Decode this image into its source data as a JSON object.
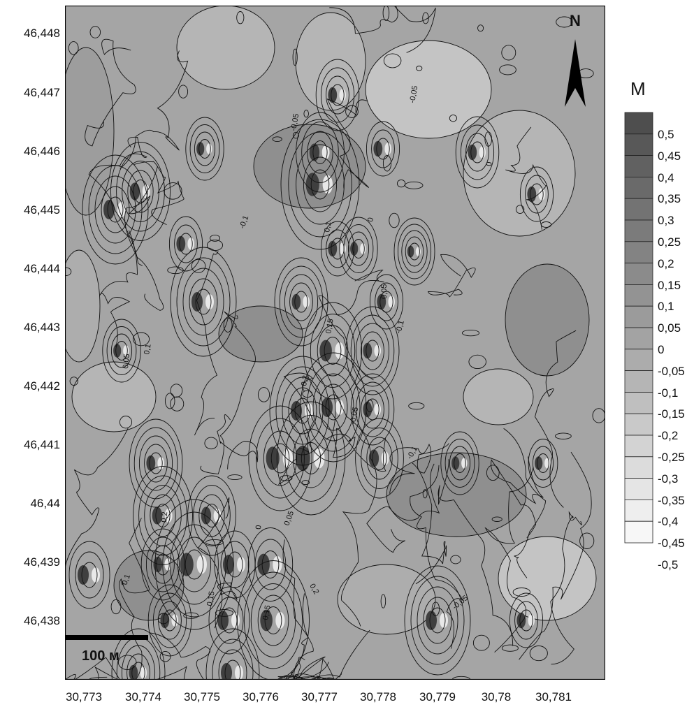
{
  "map": {
    "y_axis_labels": [
      "46,448",
      "46,447",
      "46,446",
      "46,445",
      "46,444",
      "46,443",
      "46,442",
      "46,441",
      "46,44",
      "46,439",
      "46,438"
    ],
    "x_axis_labels": [
      "30,773",
      "30,774",
      "30,775",
      "30,776",
      "30,777",
      "30,778",
      "30,779",
      "30,78",
      "30,781"
    ],
    "contour_labels": [
      "-0.05",
      "-0.1",
      "0",
      "0.05",
      "0.1",
      "0.15",
      "0.2"
    ],
    "scale_bar_label": "100 м",
    "north_label": "N",
    "colors": {
      "background": "#ffffff",
      "contour_line": "#111111",
      "frame": "#000000"
    }
  },
  "legend": {
    "title": "М",
    "levels": [
      "0,5",
      "0,45",
      "0,4",
      "0,35",
      "0,3",
      "0,25",
      "0,2",
      "0,15",
      "0,1",
      "0,05",
      "0",
      "-0,05",
      "-0,1",
      "-0,15",
      "-0,2",
      "-0,25",
      "-0,3",
      "-0,35",
      "-0,4",
      "-0,45",
      "-0,5"
    ],
    "colors": [
      "#4e4e4e",
      "#585858",
      "#616161",
      "#6a6a6a",
      "#737373",
      "#7b7b7b",
      "#838383",
      "#8b8b8b",
      "#939393",
      "#9b9b9b",
      "#a3a3a3",
      "#acacac",
      "#b5b5b5",
      "#bfbfbf",
      "#c9c9c9",
      "#d3d3d3",
      "#dcdcdc",
      "#e5e5e5",
      "#eeeeee",
      "#f7f7f7"
    ]
  }
}
